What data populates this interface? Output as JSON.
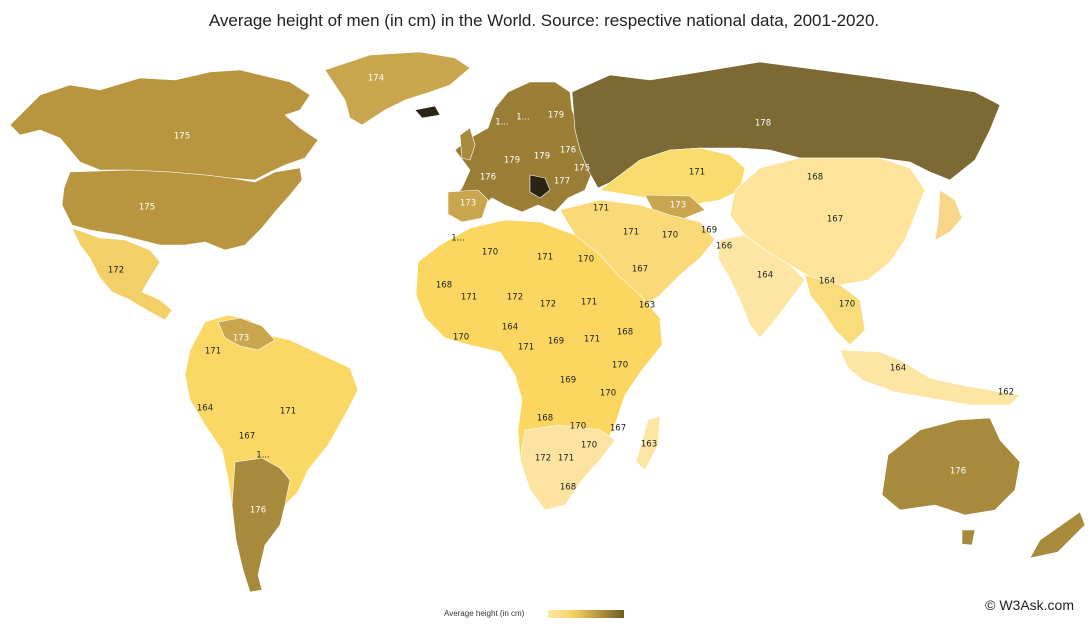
{
  "title": "Average height of men (in cm) in the World. Source: respective national data, 2001-2020.",
  "legend": {
    "label": "Average height (in cm)",
    "color_low": "#fce8a8",
    "color_high": "#6d5a22"
  },
  "copyright": "© W3Ask.com",
  "colors": {
    "h162": "#fde9ae",
    "h164": "#fce6a4",
    "h168": "#f9dd85",
    "h171": "#f6d160",
    "h173": "#c9a64e",
    "h175": "#b8953e",
    "h176": "#a88a3c",
    "h178": "#7c6934",
    "h180": "#2b2414"
  },
  "country_labels": [
    {
      "id": "greenland",
      "text": "174"
    },
    {
      "id": "canada",
      "text": "175"
    },
    {
      "id": "usa",
      "text": "175"
    },
    {
      "id": "mexico",
      "text": "172"
    },
    {
      "id": "colombia",
      "text": "171"
    },
    {
      "id": "venezuela",
      "text": "173"
    },
    {
      "id": "peru",
      "text": "164"
    },
    {
      "id": "brazil",
      "text": "171"
    },
    {
      "id": "bolivia",
      "text": "167"
    },
    {
      "id": "paraguay",
      "text": "1..."
    },
    {
      "id": "argentina",
      "text": "176"
    },
    {
      "id": "norway",
      "text": "1..."
    },
    {
      "id": "sweden",
      "text": "1..."
    },
    {
      "id": "finland",
      "text": "179"
    },
    {
      "id": "belarus",
      "text": "176"
    },
    {
      "id": "poland",
      "text": "179"
    },
    {
      "id": "germany",
      "text": "179"
    },
    {
      "id": "ukraine",
      "text": "175"
    },
    {
      "id": "france",
      "text": "176"
    },
    {
      "id": "balkans",
      "text": "177"
    },
    {
      "id": "spain",
      "text": "173"
    },
    {
      "id": "russia",
      "text": "178"
    },
    {
      "id": "kazakhstan",
      "text": "171"
    },
    {
      "id": "mongolia",
      "text": "168"
    },
    {
      "id": "china",
      "text": "167"
    },
    {
      "id": "turkey",
      "text": "171"
    },
    {
      "id": "turkmenistan",
      "text": "173"
    },
    {
      "id": "iraq",
      "text": "171"
    },
    {
      "id": "iran",
      "text": "170"
    },
    {
      "id": "afghanistan",
      "text": "169"
    },
    {
      "id": "pakistan",
      "text": "166"
    },
    {
      "id": "india",
      "text": "164"
    },
    {
      "id": "myanmar",
      "text": "164"
    },
    {
      "id": "thailand",
      "text": "170"
    },
    {
      "id": "saudi",
      "text": "167"
    },
    {
      "id": "yemen",
      "text": "163"
    },
    {
      "id": "morocco",
      "text": "1..."
    },
    {
      "id": "algeria",
      "text": "170"
    },
    {
      "id": "libya",
      "text": "171"
    },
    {
      "id": "egypt",
      "text": "170"
    },
    {
      "id": "mauritania",
      "text": "168"
    },
    {
      "id": "mali",
      "text": "171"
    },
    {
      "id": "niger",
      "text": "172"
    },
    {
      "id": "chad",
      "text": "172"
    },
    {
      "id": "sudan",
      "text": "171"
    },
    {
      "id": "ethiopia",
      "text": "168"
    },
    {
      "id": "ghana",
      "text": "164"
    },
    {
      "id": "ivorycoast",
      "text": "170"
    },
    {
      "id": "nigeria",
      "text": "171"
    },
    {
      "id": "car",
      "text": "169"
    },
    {
      "id": "southsudan",
      "text": "171"
    },
    {
      "id": "somalia",
      "text": "170"
    },
    {
      "id": "drc",
      "text": "169"
    },
    {
      "id": "kenya",
      "text": "170"
    },
    {
      "id": "angola",
      "text": "168"
    },
    {
      "id": "zambia",
      "text": "170"
    },
    {
      "id": "mozambique",
      "text": "170"
    },
    {
      "id": "tanzania",
      "text": "167"
    },
    {
      "id": "madagascar",
      "text": "163"
    },
    {
      "id": "namibia",
      "text": "172"
    },
    {
      "id": "botswana",
      "text": "171"
    },
    {
      "id": "southafrica",
      "text": "168"
    },
    {
      "id": "indonesia",
      "text": "164"
    },
    {
      "id": "png",
      "text": "162"
    },
    {
      "id": "australia",
      "text": "176"
    }
  ]
}
